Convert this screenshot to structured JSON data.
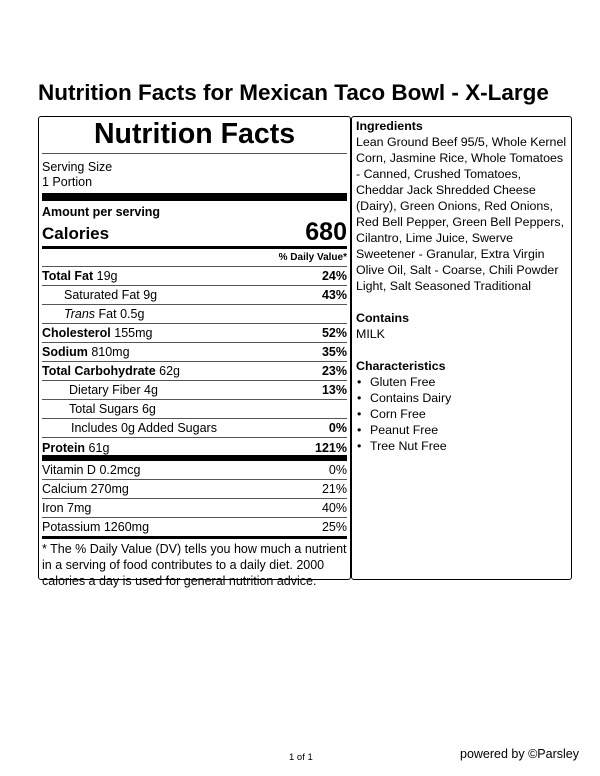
{
  "page_title": "Nutrition Facts for Mexican Taco Bowl - X-Large",
  "label": {
    "heading": "Nutrition Facts",
    "serving_size_label": "Serving Size",
    "serving_size": "1 Portion",
    "amount_per_serving": "Amount per serving",
    "calories_label": "Calories",
    "calories": "680",
    "dv_header": "% Daily Value*",
    "nutrients": [
      {
        "name": "Total Fat",
        "amount": "19g",
        "dv": "24%"
      },
      {
        "name": "Saturated Fat",
        "amount": "9g",
        "dv": "43%"
      },
      {
        "name": "Trans",
        "name_rest": "Fat",
        "amount": "0.5g",
        "dv": ""
      },
      {
        "name": "Cholesterol",
        "amount": "155mg",
        "dv": "52%"
      },
      {
        "name": "Sodium",
        "amount": "810mg",
        "dv": "35%"
      },
      {
        "name": "Total Carbohydrate",
        "amount": "62g",
        "dv": "23%"
      },
      {
        "name": "Dietary Fiber",
        "amount": "4g",
        "dv": "13%"
      },
      {
        "name": "Total Sugars",
        "amount": "6g",
        "dv": ""
      },
      {
        "name": "Includes 0g Added Sugars",
        "amount": "",
        "dv": "0%"
      },
      {
        "name": "Protein",
        "amount": "61g",
        "dv": "121%"
      }
    ],
    "vitamins": [
      {
        "name": "Vitamin D",
        "amount": "0.2mcg",
        "dv": "0%"
      },
      {
        "name": "Calcium",
        "amount": "270mg",
        "dv": "21%"
      },
      {
        "name": "Iron",
        "amount": "7mg",
        "dv": "40%"
      },
      {
        "name": "Potassium",
        "amount": "1260mg",
        "dv": "25%"
      }
    ],
    "footnote": "* The % Daily Value (DV) tells you how much a nutrient in a serving of food contributes to a daily diet. 2000 calories a day is used for general nutrition advice."
  },
  "side": {
    "ingredients_heading": "Ingredients",
    "ingredients": "Lean Ground Beef 95/5, Whole Kernel Corn, Jasmine Rice, Whole Tomatoes - Canned, Crushed Tomatoes, Cheddar Jack Shredded Cheese (Dairy), Green Onions, Red Onions, Red Bell Pepper, Green Bell Peppers, Cilantro, Lime Juice, Swerve Sweetener - Granular, Extra Virgin Olive Oil, Salt - Coarse, Chili Powder Light, Salt Seasoned Traditional",
    "contains_heading": "Contains",
    "contains": "MILK",
    "characteristics_heading": "Characteristics",
    "characteristics": [
      "Gluten Free",
      "Contains Dairy",
      "Corn Free",
      "Peanut Free",
      "Tree Nut Free"
    ]
  },
  "footer": {
    "page": "1 of 1",
    "powered_by": "powered by ©Parsley"
  }
}
